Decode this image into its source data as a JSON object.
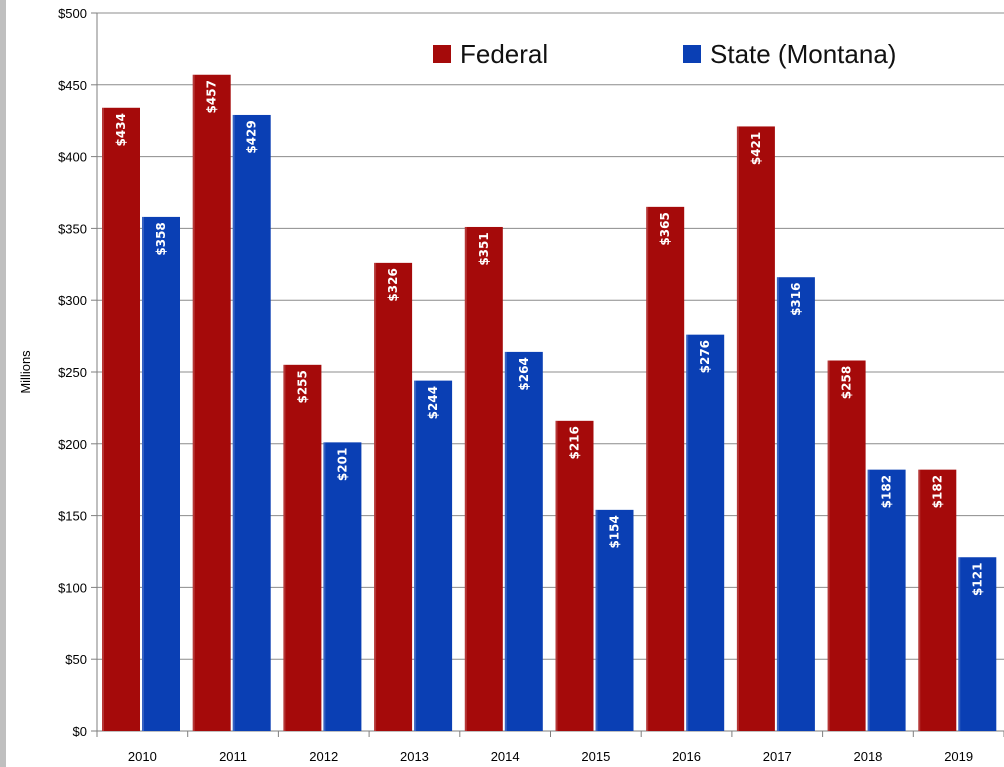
{
  "chart_data": {
    "type": "bar",
    "title": "",
    "xlabel": "",
    "ylabel": "Millions",
    "ylim": [
      0,
      500
    ],
    "yticks": [
      "$0",
      "$50",
      "$100",
      "$150",
      "$200",
      "$250",
      "$300",
      "$350",
      "$400",
      "$450",
      "$500"
    ],
    "categories": [
      "2010",
      "2011",
      "2012",
      "2013",
      "2014",
      "2015",
      "2016",
      "2017",
      "2018",
      "2019"
    ],
    "series": [
      {
        "name": "Federal",
        "color": "#a50a0a",
        "values": [
          434,
          457,
          255,
          326,
          351,
          216,
          365,
          421,
          258,
          182
        ],
        "labels": [
          "$434",
          "$457",
          "$255",
          "$326",
          "$351",
          "$216",
          "$365",
          "$421",
          "$258",
          "$182"
        ]
      },
      {
        "name": "State (Montana)",
        "color": "#0a3fb4",
        "values": [
          358,
          429,
          201,
          244,
          264,
          154,
          276,
          316,
          182,
          121
        ],
        "labels": [
          "$358",
          "$429",
          "$201",
          "$244",
          "$264",
          "$154",
          "$276",
          "$316",
          "$182",
          "$121"
        ]
      }
    ],
    "legend_position": "top-right",
    "grid": true
  }
}
